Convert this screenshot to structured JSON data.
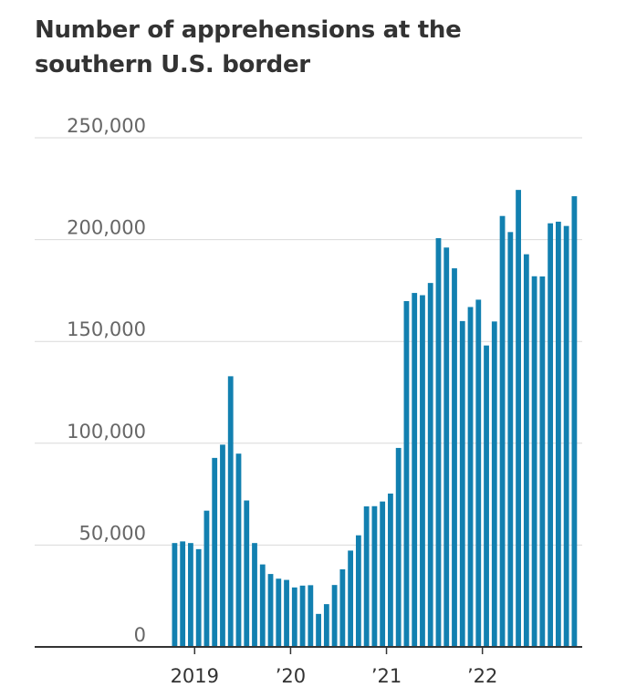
{
  "title": "Number of apprehensions at the southern U.S. border",
  "chart_data": {
    "type": "bar",
    "title": "Number of apprehensions at the southern U.S. border",
    "xlabel": "",
    "ylabel": "",
    "ylim": [
      0,
      250000
    ],
    "grid": true,
    "bar_color": "#1280b0",
    "y_ticks": [
      {
        "value": 250000,
        "label": "250,000"
      },
      {
        "value": 200000,
        "label": "200,000"
      },
      {
        "value": 150000,
        "label": "150,000"
      },
      {
        "value": 100000,
        "label": "100,000"
      },
      {
        "value": 50000,
        "label": "50,000"
      },
      {
        "value": 0,
        "label": "0"
      }
    ],
    "x_ticks": [
      {
        "label": "2019",
        "at": "2019-01"
      },
      {
        "label": "’20",
        "at": "2020-01"
      },
      {
        "label": "’21",
        "at": "2021-01"
      },
      {
        "label": "’22",
        "at": "2022-01"
      }
    ],
    "categories": [
      "2018-10",
      "2018-11",
      "2018-12",
      "2019-01",
      "2019-02",
      "2019-03",
      "2019-04",
      "2019-05",
      "2019-06",
      "2019-07",
      "2019-08",
      "2019-09",
      "2019-10",
      "2019-11",
      "2019-12",
      "2020-01",
      "2020-02",
      "2020-03",
      "2020-04",
      "2020-05",
      "2020-06",
      "2020-07",
      "2020-08",
      "2020-09",
      "2020-10",
      "2020-11",
      "2020-12",
      "2021-01",
      "2021-02",
      "2021-03",
      "2021-04",
      "2021-05",
      "2021-06",
      "2021-07",
      "2021-08",
      "2021-09",
      "2021-10",
      "2021-11",
      "2021-12",
      "2022-01",
      "2022-02",
      "2022-03",
      "2022-04",
      "2022-05",
      "2022-06",
      "2022-07",
      "2022-08",
      "2022-09",
      "2022-10",
      "2022-11",
      "2022-12"
    ],
    "values": [
      51000,
      51800,
      51000,
      48000,
      66900,
      92800,
      99300,
      132900,
      94900,
      71900,
      51000,
      40500,
      35800,
      33500,
      32900,
      29200,
      30100,
      30300,
      16200,
      21000,
      30400,
      38100,
      47300,
      54800,
      69000,
      69100,
      71400,
      75300,
      97700,
      169800,
      173800,
      172700,
      178700,
      200700,
      196100,
      185900,
      160000,
      166900,
      170500,
      148000,
      159800,
      211600,
      203700,
      224400,
      192800,
      182000,
      181900,
      208000,
      208800,
      206700,
      221300
    ]
  }
}
